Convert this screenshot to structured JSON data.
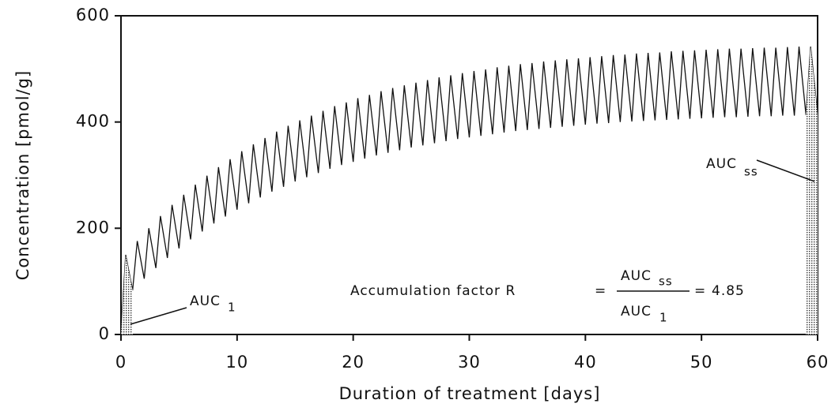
{
  "chart_data": {
    "type": "line",
    "xlabel": "Duration of treatment  [days]",
    "ylabel": "Concentration  [pmol/g]",
    "xlim": [
      0,
      60
    ],
    "xticks": [
      0,
      10,
      20,
      30,
      40,
      50,
      60
    ],
    "ylim": [
      0,
      600
    ],
    "yticks": [
      0,
      200,
      400,
      600
    ],
    "color": "#111111",
    "shaded_ranges": [
      [
        0,
        1
      ],
      [
        59,
        60
      ]
    ],
    "x": [
      0,
      0.4,
      1,
      1.4,
      2,
      2.4,
      3,
      3.4,
      4,
      4.4,
      5,
      5.4,
      6,
      6.4,
      7,
      7.4,
      8,
      8.4,
      9,
      9.4,
      10,
      10.4,
      11,
      11.4,
      12,
      12.4,
      13,
      13.4,
      14,
      14.4,
      15,
      15.4,
      16,
      16.4,
      17,
      17.4,
      18,
      18.4,
      19,
      19.4,
      20,
      20.4,
      21,
      21.4,
      22,
      22.4,
      23,
      23.4,
      24,
      24.4,
      25,
      25.4,
      26,
      26.4,
      27,
      27.4,
      28,
      28.4,
      29,
      29.4,
      30,
      30.4,
      31,
      31.4,
      32,
      32.4,
      33,
      33.4,
      34,
      34.4,
      35,
      35.4,
      36,
      36.4,
      37,
      37.4,
      38,
      38.4,
      39,
      39.4,
      40,
      40.4,
      41,
      41.4,
      42,
      42.4,
      43,
      43.4,
      44,
      44.4,
      45,
      45.4,
      46,
      46.4,
      47,
      47.4,
      48,
      48.4,
      49,
      49.4,
      50,
      50.4,
      51,
      51.4,
      52,
      52.4,
      53,
      53.4,
      54,
      54.4,
      55,
      55.4,
      56,
      56.4,
      57,
      57.4,
      58,
      58.4,
      59,
      59.4,
      60
    ],
    "values": [
      0,
      150,
      83,
      176,
      105,
      200,
      125,
      223,
      144,
      244,
      162,
      263,
      179,
      282,
      194,
      299,
      209,
      315,
      222,
      330,
      235,
      345,
      247,
      358,
      258,
      370,
      269,
      382,
      278,
      393,
      288,
      403,
      296,
      412,
      304,
      421,
      312,
      430,
      319,
      437,
      325,
      445,
      331,
      451,
      337,
      458,
      342,
      464,
      347,
      469,
      352,
      474,
      356,
      479,
      360,
      484,
      364,
      488,
      368,
      492,
      371,
      496,
      374,
      499,
      377,
      503,
      380,
      506,
      383,
      509,
      385,
      511,
      387,
      514,
      389,
      516,
      391,
      518,
      393,
      520,
      395,
      522,
      397,
      524,
      398,
      526,
      400,
      527,
      401,
      529,
      402,
      530,
      403,
      531,
      404,
      533,
      405,
      534,
      406,
      535,
      407,
      536,
      408,
      537,
      409,
      538,
      409,
      538,
      410,
      539,
      411,
      540,
      411,
      540,
      412,
      541,
      412,
      542,
      413,
      542,
      413
    ],
    "annotations": {
      "auc1": {
        "text": "AUC",
        "sub": "1"
      },
      "aucss": {
        "text": "AUC",
        "sub": "ss"
      },
      "formula": {
        "label": "Accumulation factor R",
        "equals": "=",
        "numerator": {
          "text": "AUC",
          "sub": "ss"
        },
        "denominator": {
          "text": "AUC",
          "sub": "1"
        },
        "result": 4.85
      }
    }
  }
}
